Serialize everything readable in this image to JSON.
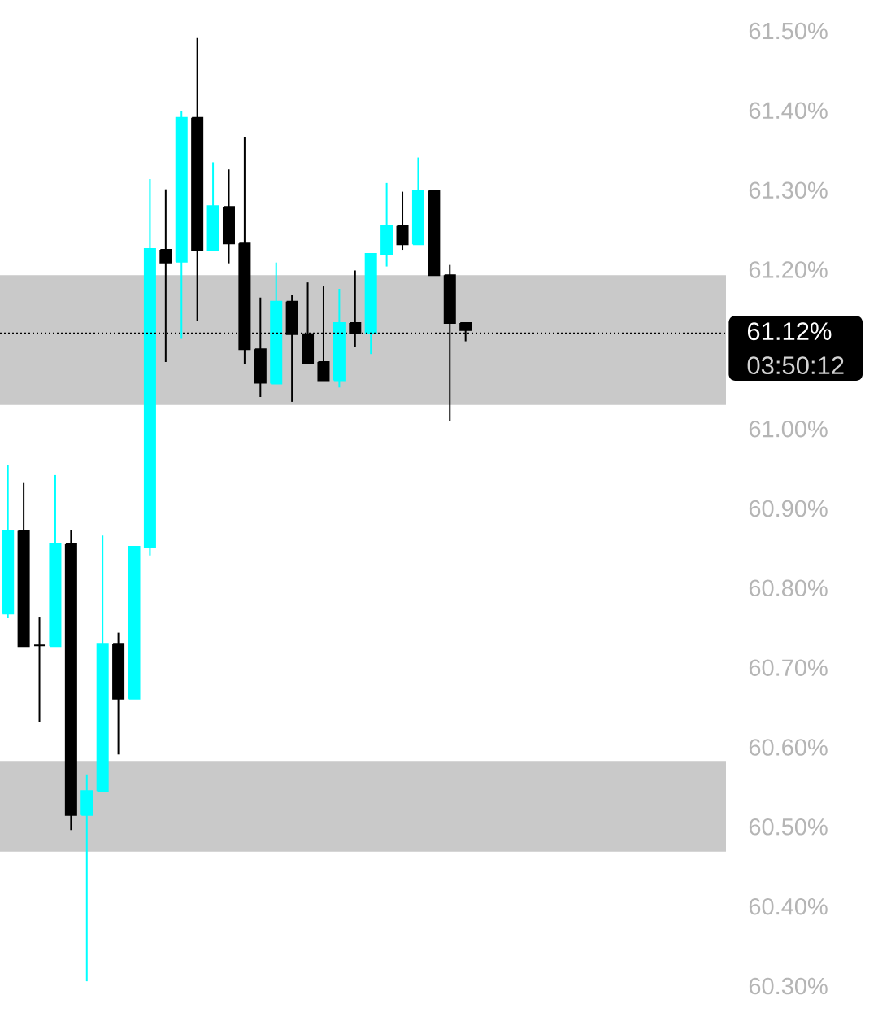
{
  "chart_data": {
    "type": "candlestick",
    "categories": [
      null,
      null,
      null,
      null,
      null,
      null,
      null,
      null,
      null,
      null,
      null,
      null,
      null,
      null,
      null,
      null,
      null,
      null,
      null,
      null,
      null,
      null,
      null,
      null,
      null,
      null,
      null,
      null,
      null,
      null,
      null,
      null,
      null,
      null,
      null,
      null,
      null,
      null,
      null,
      null,
      null,
      null,
      null,
      null,
      null,
      null
    ],
    "ohlc": [
      [
        60.768,
        60.955,
        60.763,
        60.872
      ],
      [
        60.872,
        60.932,
        60.727,
        60.727
      ],
      [
        60.728,
        60.764,
        60.632,
        60.728
      ],
      [
        60.727,
        60.942,
        60.727,
        60.855
      ],
      [
        60.855,
        60.873,
        60.496,
        60.515
      ],
      [
        60.515,
        60.566,
        60.306,
        60.545
      ],
      [
        60.545,
        60.866,
        60.545,
        60.73
      ],
      [
        60.73,
        60.744,
        60.591,
        60.661
      ],
      [
        60.661,
        60.852,
        60.661,
        60.852
      ],
      [
        60.851,
        61.314,
        60.841,
        61.226
      ],
      [
        61.225,
        61.301,
        61.084,
        61.209
      ],
      [
        61.21,
        61.399,
        61.113,
        61.391
      ],
      [
        61.391,
        61.491,
        61.135,
        61.224
      ],
      [
        61.224,
        61.335,
        61.224,
        61.28
      ],
      [
        61.279,
        61.326,
        61.208,
        61.233
      ],
      [
        61.233,
        61.366,
        61.082,
        61.1
      ],
      [
        61.1,
        61.165,
        61.04,
        61.058
      ],
      [
        61.057,
        61.209,
        61.057,
        61.16
      ],
      [
        61.16,
        61.168,
        61.034,
        61.119
      ],
      [
        61.119,
        61.184,
        61.082,
        61.082
      ],
      [
        61.084,
        61.179,
        61.061,
        61.061
      ],
      [
        61.061,
        61.176,
        61.052,
        61.133
      ],
      [
        61.133,
        61.199,
        61.103,
        61.12
      ],
      [
        61.12,
        61.22,
        61.094,
        61.22
      ],
      [
        61.219,
        61.309,
        61.204,
        61.255
      ],
      [
        61.255,
        61.298,
        61.225,
        61.232
      ],
      [
        61.232,
        61.341,
        61.232,
        61.299
      ],
      [
        61.299,
        61.299,
        61.193,
        61.193
      ],
      [
        61.193,
        61.206,
        61.01,
        61.133
      ],
      [
        61.133,
        61.133,
        61.11,
        61.124
      ],
      null,
      null,
      null,
      null,
      null,
      null,
      null,
      null,
      null,
      null,
      null,
      null,
      null,
      null,
      null,
      null
    ],
    "colors": [
      "#00ffff",
      "#000000",
      "#000000",
      "#00ffff",
      "#000000",
      "#00ffff",
      "#00ffff",
      "#000000",
      "#00ffff",
      "#00ffff",
      "#000000",
      "#00ffff",
      "#000000",
      "#00ffff",
      "#000000",
      "#000000",
      "#000000",
      "#00ffff",
      "#000000",
      "#000000",
      "#000000",
      "#00ffff",
      "#000000",
      "#00ffff",
      "#00ffff",
      "#000000",
      "#00ffff",
      "#000000",
      "#000000",
      "#000000",
      null,
      null,
      null,
      null,
      null,
      null,
      null,
      null,
      null,
      null,
      null,
      null,
      null,
      null,
      null,
      null
    ],
    "ylim": [
      60.3,
      61.5
    ],
    "yticks": [
      {
        "value": 60.3,
        "label": "60.30%"
      },
      {
        "value": 60.4,
        "label": "60.40%"
      },
      {
        "value": 60.5,
        "label": "60.50%"
      },
      {
        "value": 60.6,
        "label": "60.60%"
      },
      {
        "value": 60.7,
        "label": "60.70%"
      },
      {
        "value": 60.8,
        "label": "60.80%"
      },
      {
        "value": 60.9,
        "label": "60.90%"
      },
      {
        "value": 61.0,
        "label": "61.00%"
      },
      {
        "value": 61.2,
        "label": "61.20%"
      },
      {
        "value": 61.3,
        "label": "61.30%"
      },
      {
        "value": 61.4,
        "label": "61.40%"
      },
      {
        "value": 61.5,
        "label": "61.50%"
      }
    ],
    "bands": [
      {
        "axis": "y",
        "from": 61.03,
        "to": 61.193,
        "color": "#c9c9c9"
      },
      {
        "axis": "y",
        "from": 60.469,
        "to": 60.583,
        "color": "#c9c9c9"
      }
    ],
    "ref_lines": [
      {
        "axis": "y",
        "value": 61.12,
        "label": "61.12%",
        "color": "#000000",
        "line_style": "dotted"
      }
    ],
    "annotations": [
      "03:50:12"
    ],
    "tick_labels": "y"
  }
}
